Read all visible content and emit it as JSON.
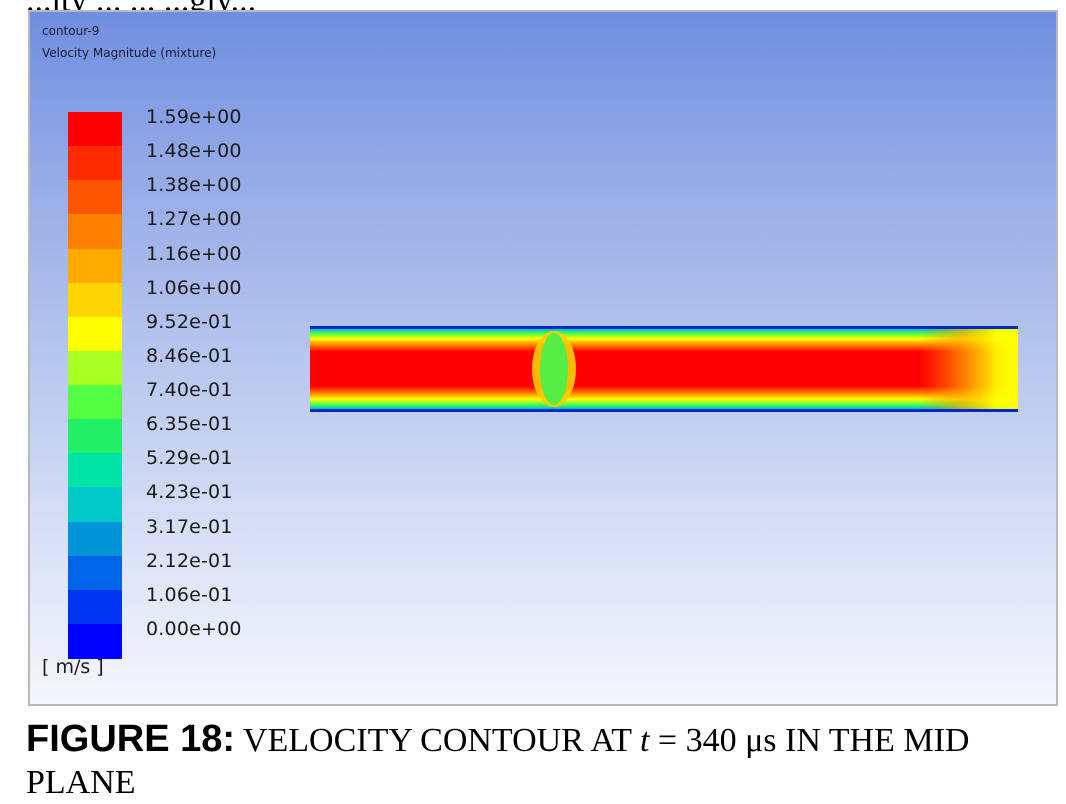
{
  "top_cut_text": "...ity ... ... ...gly...",
  "contour": {
    "name": "contour-9",
    "quantity": "Velocity Magnitude (mixture)",
    "unit": "[ m/s ]",
    "levels": [
      "1.59e+00",
      "1.48e+00",
      "1.38e+00",
      "1.27e+00",
      "1.16e+00",
      "1.06e+00",
      "9.52e-01",
      "8.46e-01",
      "7.40e-01",
      "6.35e-01",
      "5.29e-01",
      "4.23e-01",
      "3.17e-01",
      "2.12e-01",
      "1.06e-01",
      "0.00e+00"
    ],
    "colormap": [
      "#ff0000",
      "#ff2a00",
      "#ff5400",
      "#ff8000",
      "#ffaa00",
      "#ffd400",
      "#ffff00",
      "#aaff22",
      "#55ff44",
      "#22ee66",
      "#00e5a5",
      "#00c8c8",
      "#0095d8",
      "#0064e8",
      "#0034f0",
      "#0000ff"
    ]
  },
  "caption": {
    "label": "FIGURE 18:",
    "text_before": " VELOCITY CONTOUR AT ",
    "var": "t",
    "text_after": " = 340 μs IN THE MID PLANE"
  }
}
